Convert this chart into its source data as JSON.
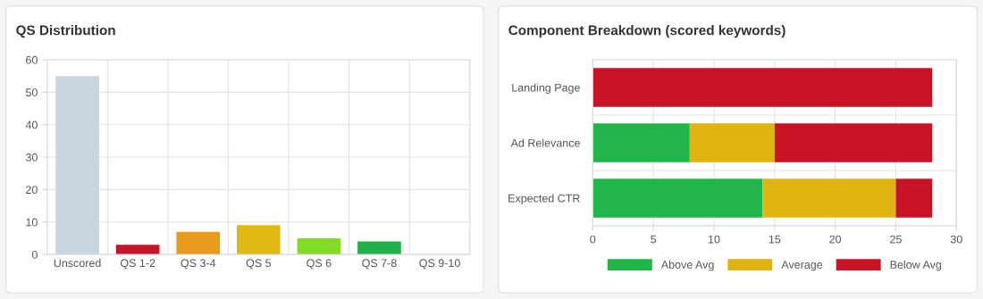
{
  "chart_data": [
    {
      "type": "bar",
      "title": "QS Distribution",
      "categories": [
        "Unscored",
        "QS 1-2",
        "QS 3-4",
        "QS 5",
        "QS 6",
        "QS 7-8",
        "QS 9-10"
      ],
      "values": [
        55,
        3,
        7,
        9,
        5,
        4,
        0
      ],
      "colors": [
        "#c8d5de",
        "#c8142a",
        "#e89a1a",
        "#e0b812",
        "#82dc24",
        "#22b04a",
        "#22b04a"
      ],
      "ylim": [
        0,
        60
      ],
      "yticks": [
        0,
        10,
        20,
        30,
        40,
        50,
        60
      ],
      "grid": true,
      "legend": false
    },
    {
      "type": "bar",
      "title": "Component Breakdown (scored keywords)",
      "orientation": "horizontal",
      "stacked": true,
      "categories": [
        "Landing Page",
        "Ad Relevance",
        "Expected CTR"
      ],
      "series": [
        {
          "name": "Above Avg",
          "color": "#22b64a",
          "values": [
            0,
            8,
            14
          ]
        },
        {
          "name": "Average",
          "color": "#e0b512",
          "values": [
            0,
            7,
            11
          ]
        },
        {
          "name": "Below Avg",
          "color": "#c81426",
          "values": [
            28,
            13,
            3
          ]
        }
      ],
      "xlim": [
        0,
        30
      ],
      "xticks": [
        0,
        5,
        10,
        15,
        20,
        25,
        30
      ],
      "grid": true,
      "legend": "bottom"
    }
  ]
}
